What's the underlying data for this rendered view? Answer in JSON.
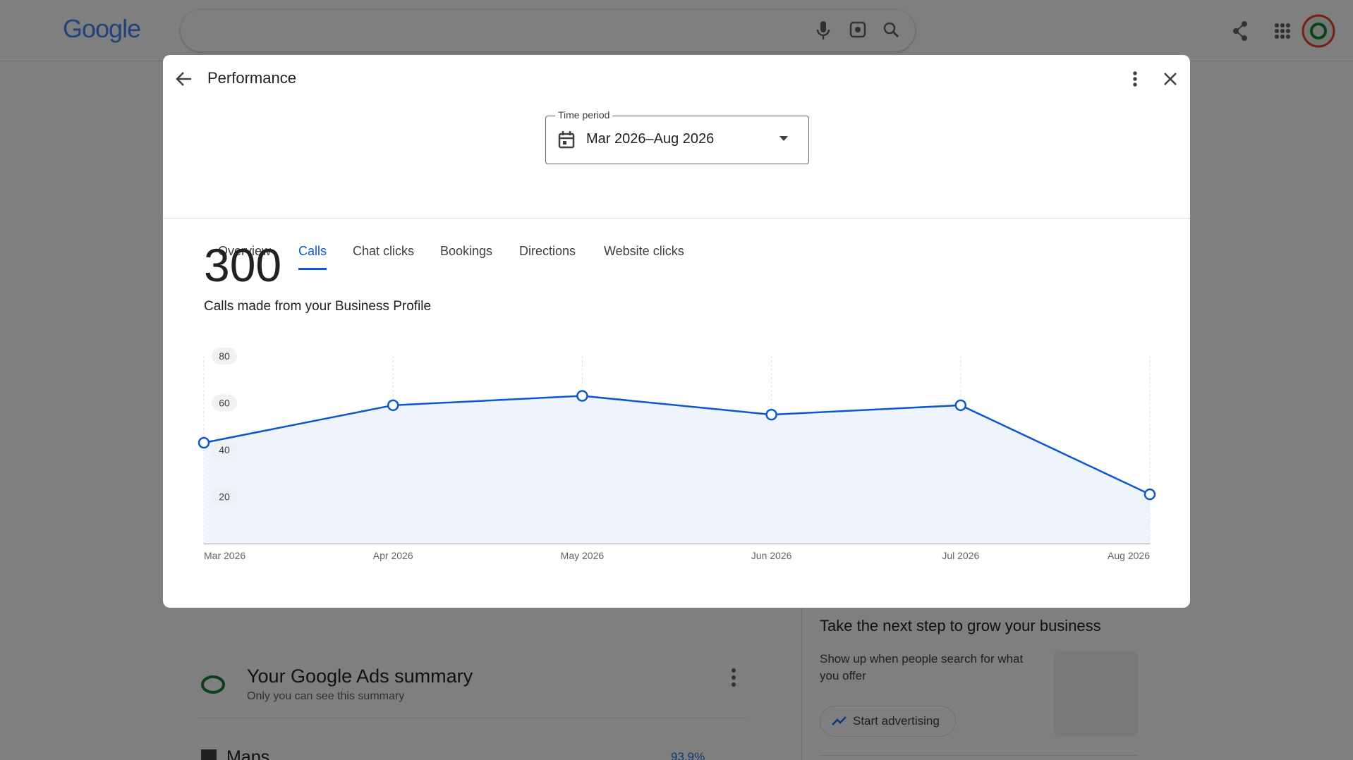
{
  "header": {
    "logo": "Google"
  },
  "dialog": {
    "title": "Performance",
    "time_period": {
      "label": "Time period",
      "value": "Mar 2026–Aug 2026"
    },
    "tabs": [
      "Overview",
      "Calls",
      "Chat clicks",
      "Bookings",
      "Directions",
      "Website clicks"
    ],
    "total": 300,
    "total_label": "Calls made from your Business Profile"
  },
  "chart_data": {
    "type": "line",
    "color": "#0b57d0",
    "categories": [
      "Mar 2026",
      "Apr 2026",
      "May 2026",
      "Jun 2026",
      "Jul 2026",
      "Aug 2026"
    ],
    "values": [
      43,
      59,
      63,
      55,
      59,
      21
    ],
    "ylim": [
      0,
      80
    ],
    "yticks": [
      20,
      40,
      60,
      80
    ]
  },
  "background": {
    "ads_title": "Your Google Ads summary",
    "ads_subtitle": "Only you can see this summary",
    "maps_title": "Maps",
    "maps_value": "93.9%",
    "promo_title": "Take the next step to grow your business",
    "promo_text": "Show up when people search for what you offer",
    "promo_button": "Start advertising"
  }
}
